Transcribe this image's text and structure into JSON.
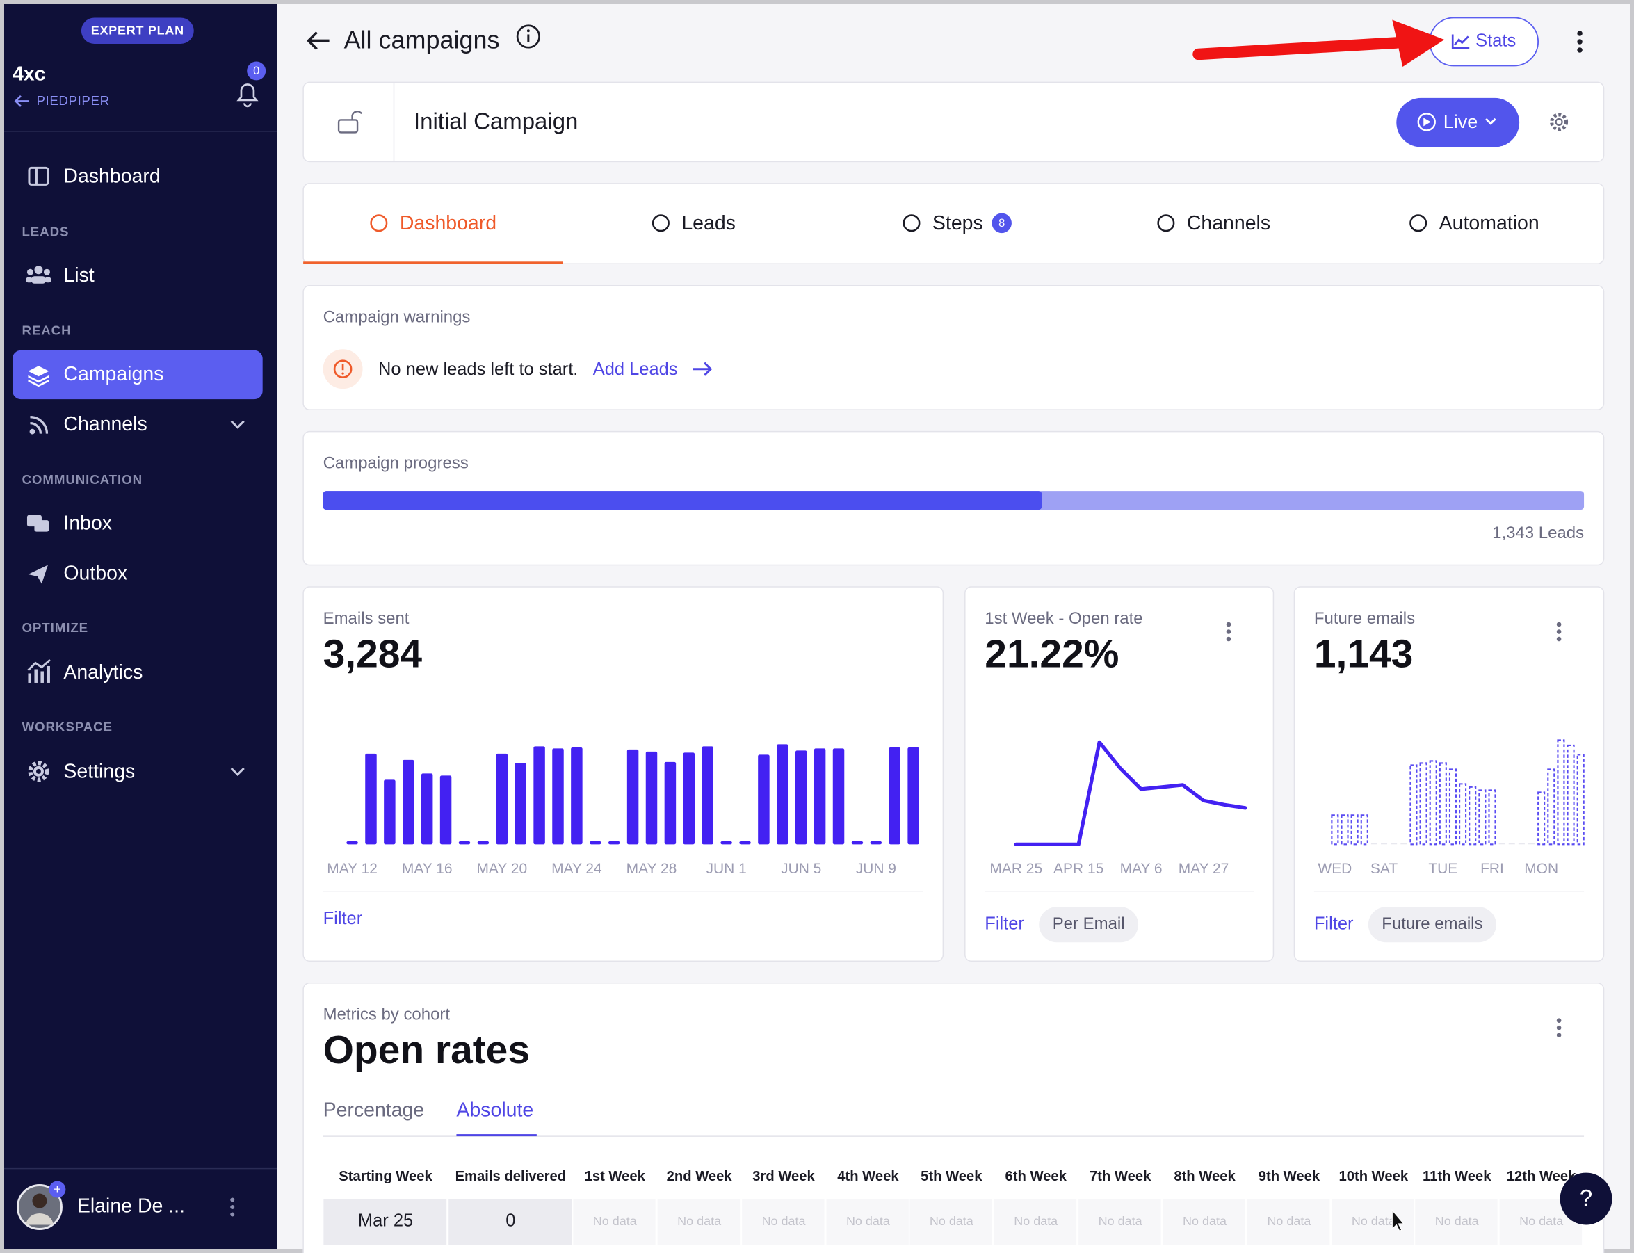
{
  "sidebar": {
    "plan_badge": "EXPERT PLAN",
    "workspace": "4xc",
    "back_link": "PIEDPIPER",
    "notifications": 0,
    "nav": {
      "dashboard": "Dashboard",
      "section_leads": "LEADS",
      "list": "List",
      "section_reach": "REACH",
      "campaigns": "Campaigns",
      "channels": "Channels",
      "section_communication": "COMMUNICATION",
      "inbox": "Inbox",
      "outbox": "Outbox",
      "section_optimize": "OPTIMIZE",
      "analytics": "Analytics",
      "section_workspace": "WORKSPACE",
      "settings": "Settings"
    },
    "user": {
      "name": "Elaine De ...",
      "badge": "+"
    }
  },
  "header": {
    "title": "All campaigns",
    "stats_button": "Stats"
  },
  "campaign": {
    "name": "Initial Campaign",
    "status_button": "Live"
  },
  "tabs": [
    {
      "label": "Dashboard"
    },
    {
      "label": "Leads"
    },
    {
      "label": "Steps",
      "badge": 8
    },
    {
      "label": "Channels"
    },
    {
      "label": "Automation"
    }
  ],
  "warnings": {
    "title": "Campaign warnings",
    "message": "No new leads left to start.",
    "action": "Add Leads"
  },
  "progress": {
    "title": "Campaign progress",
    "done_percent": 57,
    "total_label": "1,343 Leads"
  },
  "cards": [
    {
      "title": "Emails sent",
      "value": "3,284",
      "filter": "Filter",
      "chart": {
        "type": "bar",
        "color": "#4321f2",
        "ylim": [
          0,
          100
        ],
        "categories": [
          "MAY 12",
          null,
          null,
          null,
          "MAY 16",
          null,
          null,
          null,
          "MAY 20",
          null,
          null,
          null,
          "MAY 24",
          null,
          null,
          null,
          "MAY 28",
          null,
          null,
          null,
          "JUN 1",
          null,
          null,
          null,
          "JUN 5",
          null,
          null,
          null,
          "JUN 9",
          null,
          null
        ],
        "values": [
          0,
          87,
          62,
          81,
          68,
          66,
          0,
          0,
          87,
          78,
          94,
          92,
          93,
          0,
          0,
          91,
          89,
          79,
          88,
          94,
          0,
          0,
          86,
          96,
          90,
          92,
          92,
          0,
          0,
          93,
          93
        ]
      }
    },
    {
      "title": "1st Week - Open rate",
      "value": "21.22%",
      "filter": "Filter",
      "pill": "Per Email",
      "chart": {
        "type": "line",
        "color": "#4321f2",
        "ylim": [
          0,
          100
        ],
        "categories": [
          "MAR 25",
          null,
          null,
          "APR 15",
          null,
          null,
          "MAY 6",
          null,
          null,
          "MAY 27",
          null,
          null
        ],
        "values": [
          0,
          0,
          0,
          0,
          98,
          73,
          53,
          55,
          57,
          42,
          38,
          35
        ]
      }
    },
    {
      "title": "Future emails",
      "value": "1,143",
      "filter": "Filter",
      "pill": "Future emails",
      "chart": {
        "type": "dashed-bar",
        "color": "#5a4cf2",
        "ylim": [
          0,
          100
        ],
        "categories": [
          "WED",
          null,
          null,
          null,
          null,
          "SAT",
          null,
          null,
          null,
          null,
          null,
          "TUE",
          null,
          null,
          null,
          null,
          "FRI",
          null,
          null,
          null,
          null,
          "MON",
          null,
          null,
          null,
          null
        ],
        "values": [
          28,
          28,
          28,
          28,
          0,
          0,
          0,
          0,
          76,
          78,
          80,
          78,
          72,
          58,
          55,
          52,
          52,
          0,
          0,
          0,
          0,
          50,
          72,
          100,
          95,
          86
        ]
      }
    }
  ],
  "cohort": {
    "subtitle": "Metrics by cohort",
    "title": "Open rates",
    "tabs": [
      "Percentage",
      "Absolute"
    ],
    "table": {
      "headers": [
        "Starting Week",
        "Emails delivered",
        "1st Week",
        "2nd Week",
        "3rd Week",
        "4th Week",
        "5th Week",
        "6th Week",
        "7th Week",
        "8th Week",
        "9th Week",
        "10th Week",
        "11th Week",
        "12th Week"
      ],
      "rows": [
        [
          "Mar 25",
          "0",
          "No data",
          "No data",
          "No data",
          "No data",
          "No data",
          "No data",
          "No data",
          "No data",
          "No data",
          "No data",
          "No data",
          "No data"
        ]
      ]
    }
  },
  "help_button": "?"
}
